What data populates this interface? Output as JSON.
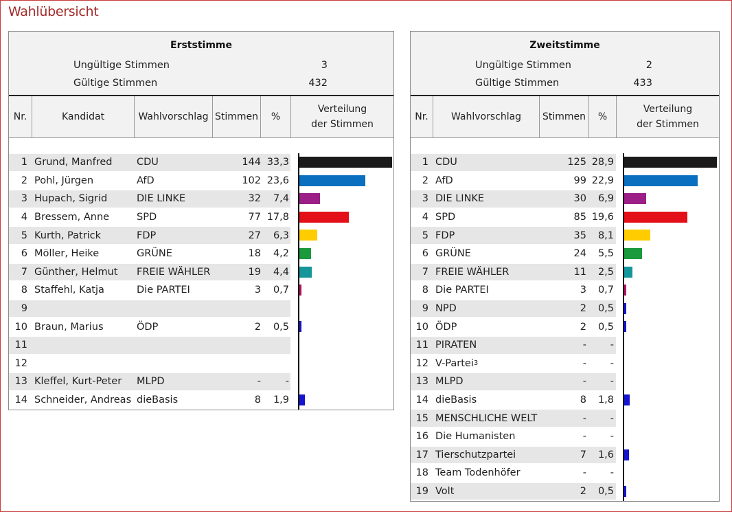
{
  "page": {
    "title": "Wahlübersicht"
  },
  "erststimme": {
    "title": "Erststimme",
    "invalid_label": "Ungültige Stimmen",
    "invalid_value": "3",
    "valid_label": "Gültige Stimmen",
    "valid_value": "432",
    "headers": {
      "nr": "Nr.",
      "kandidat": "Kandidat",
      "wahlvorschlag": "Wahlvorschlag",
      "stimmen": "Stimmen",
      "prozent": "%",
      "verteilung_line1": "Verteilung",
      "verteilung_line2": "der Stimmen"
    },
    "rows": [
      {
        "nr": "1",
        "kandidat": "Grund, Manfred",
        "partei": "CDU",
        "stimmen": "144",
        "prozent": "33,3",
        "share": 33.3,
        "color": "#1a1a1a"
      },
      {
        "nr": "2",
        "kandidat": "Pohl, Jürgen",
        "partei": "AfD",
        "stimmen": "102",
        "prozent": "23,6",
        "share": 23.6,
        "color": "#0a6fbf"
      },
      {
        "nr": "3",
        "kandidat": "Hupach, Sigrid",
        "partei": "DIE LINKE",
        "stimmen": "32",
        "prozent": "7,4",
        "share": 7.4,
        "color": "#9b1f86"
      },
      {
        "nr": "4",
        "kandidat": "Bressem, Anne",
        "partei": "SPD",
        "stimmen": "77",
        "prozent": "17,8",
        "share": 17.8,
        "color": "#e3101a"
      },
      {
        "nr": "5",
        "kandidat": "Kurth, Patrick",
        "partei": "FDP",
        "stimmen": "27",
        "prozent": "6,3",
        "share": 6.3,
        "color": "#ffcc00"
      },
      {
        "nr": "6",
        "kandidat": "Möller, Heike",
        "partei": "GRÜNE",
        "stimmen": "18",
        "prozent": "4,2",
        "share": 4.2,
        "color": "#1a9a3c"
      },
      {
        "nr": "7",
        "kandidat": "Günther, Helmut",
        "partei": "FREIE WÄHLER",
        "stimmen": "19",
        "prozent": "4,4",
        "share": 4.4,
        "color": "#14969a"
      },
      {
        "nr": "8",
        "kandidat": "Staffehl, Katja",
        "partei": "Die PARTEI",
        "stimmen": "3",
        "prozent": "0,7",
        "share": 0.7,
        "color": "#b0125f"
      },
      {
        "nr": "9",
        "kandidat": "",
        "partei": "",
        "stimmen": "",
        "prozent": "",
        "share": 0,
        "color": ""
      },
      {
        "nr": "10",
        "kandidat": "Braun, Marius",
        "partei": "ÖDP",
        "stimmen": "2",
        "prozent": "0,5",
        "share": 0.5,
        "color": "#1515d0"
      },
      {
        "nr": "11",
        "kandidat": "",
        "partei": "",
        "stimmen": "",
        "prozent": "",
        "share": 0,
        "color": ""
      },
      {
        "nr": "12",
        "kandidat": "",
        "partei": "",
        "stimmen": "",
        "prozent": "",
        "share": 0,
        "color": ""
      },
      {
        "nr": "13",
        "kandidat": "Kleffel, Kurt-Peter",
        "partei": "MLPD",
        "stimmen": "-",
        "prozent": "-",
        "share": 0,
        "color": ""
      },
      {
        "nr": "14",
        "kandidat": "Schneider, Andreas",
        "partei": "dieBasis",
        "stimmen": "8",
        "prozent": "1,9",
        "share": 1.9,
        "color": "#1515d0"
      }
    ]
  },
  "zweitstimme": {
    "title": "Zweitstimme",
    "invalid_label": "Ungültige Stimmen",
    "invalid_value": "2",
    "valid_label": "Gültige Stimmen",
    "valid_value": "433",
    "headers": {
      "nr": "Nr.",
      "wahlvorschlag": "Wahlvorschlag",
      "stimmen": "Stimmen",
      "prozent": "%",
      "verteilung_line1": "Verteilung",
      "verteilung_line2": "der Stimmen"
    },
    "rows": [
      {
        "nr": "1",
        "partei": "CDU",
        "sup": "",
        "stimmen": "125",
        "prozent": "28,9",
        "share": 28.9,
        "color": "#1a1a1a"
      },
      {
        "nr": "2",
        "partei": "AfD",
        "sup": "",
        "stimmen": "99",
        "prozent": "22,9",
        "share": 22.9,
        "color": "#0a6fbf"
      },
      {
        "nr": "3",
        "partei": "DIE LINKE",
        "sup": "",
        "stimmen": "30",
        "prozent": "6,9",
        "share": 6.9,
        "color": "#9b1f86"
      },
      {
        "nr": "4",
        "partei": "SPD",
        "sup": "",
        "stimmen": "85",
        "prozent": "19,6",
        "share": 19.6,
        "color": "#e3101a"
      },
      {
        "nr": "5",
        "partei": "FDP",
        "sup": "",
        "stimmen": "35",
        "prozent": "8,1",
        "share": 8.1,
        "color": "#ffcc00"
      },
      {
        "nr": "6",
        "partei": "GRÜNE",
        "sup": "",
        "stimmen": "24",
        "prozent": "5,5",
        "share": 5.5,
        "color": "#1a9a3c"
      },
      {
        "nr": "7",
        "partei": "FREIE WÄHLER",
        "sup": "",
        "stimmen": "11",
        "prozent": "2,5",
        "share": 2.5,
        "color": "#14969a"
      },
      {
        "nr": "8",
        "partei": "Die PARTEI",
        "sup": "",
        "stimmen": "3",
        "prozent": "0,7",
        "share": 0.7,
        "color": "#b0125f"
      },
      {
        "nr": "9",
        "partei": "NPD",
        "sup": "",
        "stimmen": "2",
        "prozent": "0,5",
        "share": 0.5,
        "color": "#1515d0"
      },
      {
        "nr": "10",
        "partei": "ÖDP",
        "sup": "",
        "stimmen": "2",
        "prozent": "0,5",
        "share": 0.5,
        "color": "#1515d0"
      },
      {
        "nr": "11",
        "partei": "PIRATEN",
        "sup": "",
        "stimmen": "-",
        "prozent": "-",
        "share": 0,
        "color": ""
      },
      {
        "nr": "12",
        "partei": "V-Partei",
        "sup": "3",
        "stimmen": "-",
        "prozent": "-",
        "share": 0,
        "color": ""
      },
      {
        "nr": "13",
        "partei": "MLPD",
        "sup": "",
        "stimmen": "-",
        "prozent": "-",
        "share": 0,
        "color": ""
      },
      {
        "nr": "14",
        "partei": "dieBasis",
        "sup": "",
        "stimmen": "8",
        "prozent": "1,8",
        "share": 1.8,
        "color": "#1515d0"
      },
      {
        "nr": "15",
        "partei": "MENSCHLICHE WELT",
        "sup": "",
        "stimmen": "-",
        "prozent": "-",
        "share": 0,
        "color": ""
      },
      {
        "nr": "16",
        "partei": "Die Humanisten",
        "sup": "",
        "stimmen": "-",
        "prozent": "-",
        "share": 0,
        "color": ""
      },
      {
        "nr": "17",
        "partei": "Tierschutzpartei",
        "sup": "",
        "stimmen": "7",
        "prozent": "1,6",
        "share": 1.6,
        "color": "#1515d0"
      },
      {
        "nr": "18",
        "partei": "Team Todenhöfer",
        "sup": "",
        "stimmen": "-",
        "prozent": "-",
        "share": 0,
        "color": ""
      },
      {
        "nr": "19",
        "partei": "Volt",
        "sup": "",
        "stimmen": "2",
        "prozent": "0,5",
        "share": 0.5,
        "color": "#1515d0"
      }
    ]
  }
}
